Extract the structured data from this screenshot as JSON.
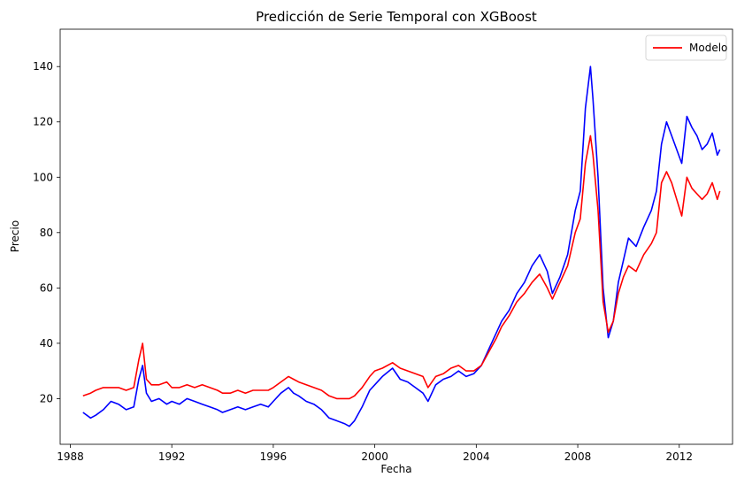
{
  "chart_data": {
    "type": "line",
    "title": "Predicción de Serie Temporal con XGBoost",
    "xlabel": "Fecha",
    "ylabel": "Precio",
    "xlim": [
      1987.6,
      2014.1
    ],
    "ylim": [
      3.5,
      153.5
    ],
    "x_ticks": [
      "1988",
      "1992",
      "1996",
      "2000",
      "2004",
      "2008",
      "2012"
    ],
    "y_ticks": [
      "20",
      "40",
      "60",
      "80",
      "100",
      "120",
      "140"
    ],
    "grid": false,
    "legend": {
      "position": "top-right",
      "entries": [
        "Modelo"
      ]
    },
    "series": [
      {
        "name": "",
        "color": "#0000ff",
        "x": [
          1988.5,
          1988.8,
          1989.0,
          1989.3,
          1989.6,
          1989.9,
          1990.2,
          1990.5,
          1990.7,
          1990.85,
          1991.0,
          1991.2,
          1991.5,
          1991.8,
          1992.0,
          1992.3,
          1992.6,
          1992.9,
          1993.2,
          1993.5,
          1993.8,
          1994.0,
          1994.3,
          1994.6,
          1994.9,
          1995.2,
          1995.5,
          1995.8,
          1996.0,
          1996.3,
          1996.6,
          1996.8,
          1997.0,
          1997.3,
          1997.6,
          1997.9,
          1998.2,
          1998.5,
          1998.8,
          1999.0,
          1999.2,
          1999.5,
          1999.8,
          2000.0,
          2000.3,
          2000.7,
          2001.0,
          2001.3,
          2001.6,
          2001.9,
          2002.1,
          2002.4,
          2002.7,
          2003.0,
          2003.3,
          2003.6,
          2003.9,
          2004.2,
          2004.5,
          2004.8,
          2005.0,
          2005.3,
          2005.6,
          2005.9,
          2006.2,
          2006.5,
          2006.8,
          2007.0,
          2007.3,
          2007.6,
          2007.9,
          2008.1,
          2008.3,
          2008.5,
          2008.6,
          2008.8,
          2009.0,
          2009.2,
          2009.4,
          2009.6,
          2009.8,
          2010.0,
          2010.3,
          2010.6,
          2010.9,
          2011.1,
          2011.3,
          2011.5,
          2011.7,
          2011.9,
          2012.1,
          2012.3,
          2012.5,
          2012.7,
          2012.9,
          2013.1,
          2013.3,
          2013.5,
          2013.6
        ],
        "y": [
          15,
          13,
          14,
          16,
          19,
          18,
          16,
          17,
          27,
          32,
          22,
          19,
          20,
          18,
          19,
          18,
          20,
          19,
          18,
          17,
          16,
          15,
          16,
          17,
          16,
          17,
          18,
          17,
          19,
          22,
          24,
          22,
          21,
          19,
          18,
          16,
          13,
          12,
          11,
          10,
          12,
          17,
          23,
          25,
          28,
          31,
          27,
          26,
          24,
          22,
          19,
          25,
          27,
          28,
          30,
          28,
          29,
          32,
          38,
          44,
          48,
          52,
          58,
          62,
          68,
          72,
          66,
          58,
          64,
          72,
          88,
          95,
          125,
          140,
          128,
          100,
          60,
          42,
          48,
          62,
          70,
          78,
          75,
          82,
          88,
          95,
          112,
          120,
          115,
          110,
          105,
          122,
          118,
          115,
          110,
          112,
          116,
          108,
          110
        ]
      },
      {
        "name": "Modelo",
        "color": "#ff0000",
        "x": [
          1988.5,
          1988.8,
          1989.0,
          1989.3,
          1989.6,
          1989.9,
          1990.2,
          1990.5,
          1990.7,
          1990.85,
          1991.0,
          1991.2,
          1991.5,
          1991.8,
          1992.0,
          1992.3,
          1992.6,
          1992.9,
          1993.2,
          1993.5,
          1993.8,
          1994.0,
          1994.3,
          1994.6,
          1994.9,
          1995.2,
          1995.5,
          1995.8,
          1996.0,
          1996.3,
          1996.6,
          1996.8,
          1997.0,
          1997.3,
          1997.6,
          1997.9,
          1998.2,
          1998.5,
          1998.8,
          1999.0,
          1999.2,
          1999.5,
          1999.8,
          2000.0,
          2000.3,
          2000.7,
          2001.0,
          2001.3,
          2001.6,
          2001.9,
          2002.1,
          2002.4,
          2002.7,
          2003.0,
          2003.3,
          2003.6,
          2003.9,
          2004.2,
          2004.5,
          2004.8,
          2005.0,
          2005.3,
          2005.6,
          2005.9,
          2006.2,
          2006.5,
          2006.8,
          2007.0,
          2007.3,
          2007.6,
          2007.9,
          2008.1,
          2008.3,
          2008.5,
          2008.6,
          2008.8,
          2009.0,
          2009.2,
          2009.4,
          2009.6,
          2009.8,
          2010.0,
          2010.3,
          2010.6,
          2010.9,
          2011.1,
          2011.3,
          2011.5,
          2011.7,
          2011.9,
          2012.1,
          2012.3,
          2012.5,
          2012.7,
          2012.9,
          2013.1,
          2013.3,
          2013.5,
          2013.6
        ],
        "y": [
          21,
          22,
          23,
          24,
          24,
          24,
          23,
          24,
          34,
          40,
          27,
          25,
          25,
          26,
          24,
          24,
          25,
          24,
          25,
          24,
          23,
          22,
          22,
          23,
          22,
          23,
          23,
          23,
          24,
          26,
          28,
          27,
          26,
          25,
          24,
          23,
          21,
          20,
          20,
          20,
          21,
          24,
          28,
          30,
          31,
          33,
          31,
          30,
          29,
          28,
          24,
          28,
          29,
          31,
          32,
          30,
          30,
          32,
          37,
          42,
          46,
          50,
          55,
          58,
          62,
          65,
          60,
          56,
          62,
          68,
          80,
          85,
          105,
          115,
          108,
          88,
          55,
          44,
          48,
          58,
          64,
          68,
          66,
          72,
          76,
          80,
          98,
          102,
          98,
          92,
          86,
          100,
          96,
          94,
          92,
          94,
          98,
          92,
          95
        ]
      }
    ]
  }
}
